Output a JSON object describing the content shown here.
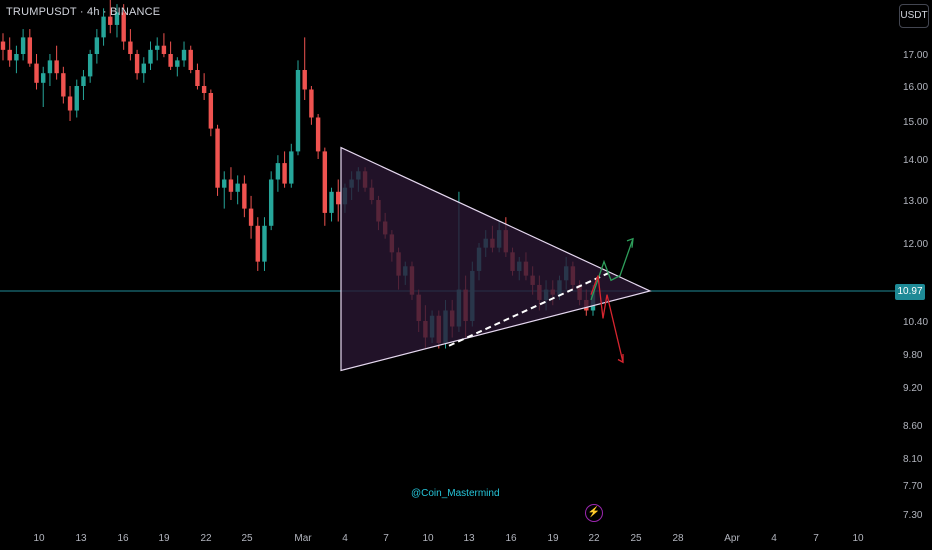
{
  "header": {
    "symbol": "TRUMPUSDT · 4h · BINANCE"
  },
  "price_axis": {
    "currency": "USDT"
  },
  "current_price": "10.97",
  "watermark": "@Coin_Mastermind",
  "colors": {
    "bull": "#26a69a",
    "bear": "#ef5350",
    "triangle_fill": "#2a1733",
    "triangle_stroke": "#e6d8f0",
    "projection_up": "#2e9e5b",
    "projection_down": "#d6252f",
    "price_line": "#1f8a96"
  },
  "chart_data": {
    "type": "candlestick",
    "title": "",
    "y_ticks": [
      "17.00",
      "16.00",
      "15.00",
      "14.00",
      "13.00",
      "12.00",
      "10.40",
      "9.80",
      "9.20",
      "8.60",
      "8.10",
      "7.70",
      "7.30"
    ],
    "x_ticks": [
      "10",
      "13",
      "16",
      "19",
      "22",
      "25",
      "Mar",
      "4",
      "7",
      "10",
      "13",
      "16",
      "19",
      "22",
      "25",
      "28",
      "Apr",
      "4",
      "7",
      "10"
    ],
    "series": [
      {
        "values": [
          [
            17.3,
            17.5,
            16.8,
            17.1
          ],
          [
            17.1,
            17.4,
            16.6,
            16.8
          ],
          [
            16.8,
            17.2,
            16.4,
            17.0
          ],
          [
            17.0,
            17.6,
            16.8,
            17.4
          ],
          [
            17.4,
            17.6,
            16.6,
            16.7
          ],
          [
            16.7,
            17.0,
            15.9,
            16.1
          ],
          [
            16.1,
            16.6,
            15.4,
            16.4
          ],
          [
            16.4,
            17.0,
            16.0,
            16.8
          ],
          [
            16.8,
            17.2,
            16.2,
            16.4
          ],
          [
            16.4,
            16.6,
            15.5,
            15.7
          ],
          [
            15.7,
            16.0,
            15.0,
            15.3
          ],
          [
            15.3,
            16.2,
            15.1,
            16.0
          ],
          [
            16.0,
            16.5,
            15.6,
            16.3
          ],
          [
            16.3,
            17.1,
            16.1,
            17.0
          ],
          [
            17.0,
            17.6,
            16.7,
            17.4
          ],
          [
            17.4,
            18.1,
            17.2,
            17.9
          ],
          [
            17.9,
            18.3,
            17.5,
            17.7
          ],
          [
            17.7,
            18.2,
            17.4,
            18.0
          ],
          [
            18.0,
            18.2,
            17.1,
            17.3
          ],
          [
            17.3,
            17.6,
            16.8,
            17.0
          ],
          [
            17.0,
            17.1,
            16.2,
            16.4
          ],
          [
            16.4,
            16.9,
            16.1,
            16.7
          ],
          [
            16.7,
            17.3,
            16.5,
            17.1
          ],
          [
            17.1,
            17.4,
            16.8,
            17.2
          ],
          [
            17.2,
            17.5,
            16.9,
            17.0
          ],
          [
            17.0,
            17.3,
            16.5,
            16.6
          ],
          [
            16.6,
            16.9,
            16.3,
            16.8
          ],
          [
            16.8,
            17.3,
            16.6,
            17.1
          ],
          [
            17.1,
            17.2,
            16.4,
            16.5
          ],
          [
            16.5,
            16.7,
            15.9,
            16.0
          ],
          [
            16.0,
            16.4,
            15.6,
            15.8
          ],
          [
            15.8,
            15.9,
            14.6,
            14.8
          ],
          [
            14.8,
            14.9,
            13.1,
            13.3
          ],
          [
            13.3,
            13.7,
            12.8,
            13.5
          ],
          [
            13.5,
            13.8,
            13.0,
            13.2
          ],
          [
            13.2,
            13.6,
            12.9,
            13.4
          ],
          [
            13.4,
            13.6,
            12.6,
            12.8
          ],
          [
            12.8,
            13.1,
            12.1,
            12.4
          ],
          [
            12.4,
            12.6,
            11.4,
            11.6
          ],
          [
            11.6,
            12.6,
            11.4,
            12.4
          ],
          [
            12.4,
            13.7,
            12.3,
            13.5
          ],
          [
            13.5,
            14.1,
            13.2,
            13.9
          ],
          [
            13.9,
            14.2,
            13.3,
            13.4
          ],
          [
            13.4,
            14.4,
            13.3,
            14.2
          ],
          [
            14.2,
            16.8,
            14.1,
            16.5
          ],
          [
            16.5,
            17.4,
            15.6,
            15.9
          ],
          [
            15.9,
            16.0,
            14.9,
            15.1
          ],
          [
            15.1,
            15.2,
            14.0,
            14.2
          ],
          [
            14.2,
            14.3,
            12.4,
            12.7
          ],
          [
            12.7,
            13.3,
            12.5,
            13.2
          ],
          [
            13.2,
            13.5,
            12.5,
            12.9
          ],
          [
            12.9,
            13.4,
            12.7,
            13.3
          ],
          [
            13.3,
            13.7,
            13.0,
            13.5
          ],
          [
            13.5,
            13.8,
            13.2,
            13.7
          ],
          [
            13.7,
            13.8,
            13.2,
            13.3
          ],
          [
            13.3,
            13.5,
            12.9,
            13.0
          ],
          [
            13.0,
            13.1,
            12.3,
            12.5
          ],
          [
            12.5,
            12.7,
            12.1,
            12.2
          ],
          [
            12.2,
            12.3,
            11.6,
            11.8
          ],
          [
            11.8,
            11.9,
            11.0,
            11.3
          ],
          [
            11.3,
            11.6,
            11.1,
            11.5
          ],
          [
            11.5,
            11.6,
            10.8,
            10.9
          ],
          [
            10.9,
            11.0,
            10.2,
            10.4
          ],
          [
            10.4,
            10.7,
            9.9,
            10.1
          ],
          [
            10.1,
            10.6,
            10.0,
            10.5
          ],
          [
            10.5,
            10.6,
            9.9,
            10.0
          ],
          [
            10.0,
            10.8,
            9.9,
            10.6
          ],
          [
            10.6,
            10.8,
            10.1,
            10.3
          ],
          [
            10.3,
            13.2,
            10.2,
            11.0
          ],
          [
            11.0,
            11.3,
            10.1,
            10.4
          ],
          [
            10.4,
            11.6,
            10.3,
            11.4
          ],
          [
            11.4,
            12.0,
            11.2,
            11.9
          ],
          [
            11.9,
            12.3,
            11.7,
            12.1
          ],
          [
            12.1,
            12.4,
            11.8,
            11.9
          ],
          [
            11.9,
            12.5,
            11.8,
            12.3
          ],
          [
            12.3,
            12.6,
            11.7,
            11.8
          ],
          [
            11.8,
            11.9,
            11.3,
            11.4
          ],
          [
            11.4,
            11.7,
            11.2,
            11.6
          ],
          [
            11.6,
            11.8,
            11.2,
            11.3
          ],
          [
            11.3,
            11.5,
            10.9,
            11.1
          ],
          [
            11.1,
            11.3,
            10.6,
            10.8
          ],
          [
            10.8,
            11.2,
            10.6,
            11.0
          ],
          [
            11.0,
            11.2,
            10.7,
            10.9
          ],
          [
            10.9,
            11.3,
            10.8,
            11.2
          ],
          [
            11.2,
            11.7,
            11.0,
            11.5
          ],
          [
            11.5,
            11.6,
            11.0,
            11.1
          ],
          [
            11.1,
            11.2,
            10.7,
            10.8
          ],
          [
            10.8,
            11.0,
            10.5,
            10.6
          ],
          [
            10.6,
            11.1,
            10.5,
            10.97
          ]
        ]
      }
    ],
    "y_range": [
      7.0,
      18.3
    ],
    "grid": false
  }
}
